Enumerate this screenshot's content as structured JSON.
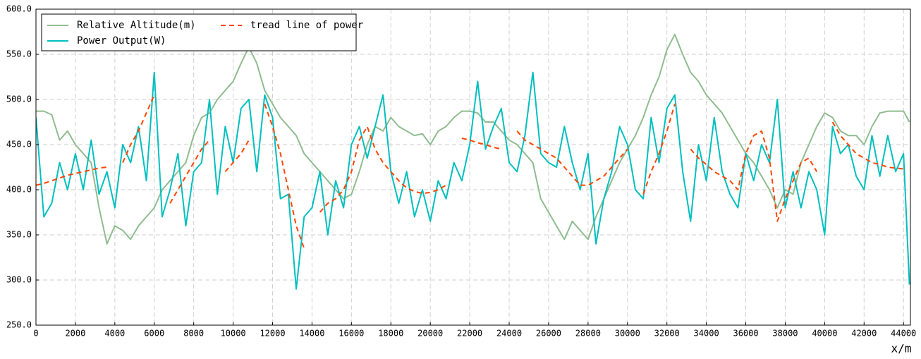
{
  "chart_data": {
    "type": "line",
    "xlabel": "x/m",
    "legend": "upper left",
    "legend_columns": 2,
    "grid": true,
    "xlim": [
      0,
      44350
    ],
    "ylim": [
      250,
      600
    ],
    "xticks": [
      0,
      2000,
      4000,
      6000,
      8000,
      10000,
      12000,
      14000,
      16000,
      18000,
      20000,
      22000,
      24000,
      26000,
      28000,
      30000,
      32000,
      34000,
      36000,
      38000,
      40000,
      42000,
      44000
    ],
    "yticks": [
      {
        "value": 250,
        "label": "250.0"
      },
      {
        "value": 300,
        "label": "300.0"
      },
      {
        "value": 350,
        "label": "350.0"
      },
      {
        "value": 400,
        "label": "400.0"
      },
      {
        "value": 450,
        "label": "450.0"
      },
      {
        "value": 500,
        "label": "500.0"
      },
      {
        "value": 550,
        "label": "550.0"
      },
      {
        "value": 600,
        "label": "600.0"
      }
    ],
    "x": [
      0,
      400,
      800,
      1200,
      1600,
      2000,
      2400,
      2800,
      3200,
      3600,
      4000,
      4400,
      4800,
      5200,
      5600,
      6000,
      6400,
      6800,
      7200,
      7600,
      8000,
      8400,
      8800,
      9200,
      9600,
      10000,
      10400,
      10800,
      11200,
      11600,
      12000,
      12400,
      12800,
      13200,
      13600,
      14000,
      14400,
      14800,
      15200,
      15600,
      16000,
      16400,
      16800,
      17200,
      17600,
      18000,
      18400,
      18800,
      19200,
      19600,
      20000,
      20400,
      20800,
      21200,
      21600,
      22000,
      22400,
      22800,
      23200,
      23600,
      24000,
      24400,
      24800,
      25200,
      25600,
      26000,
      26400,
      26800,
      27200,
      27600,
      28000,
      28400,
      28800,
      29200,
      29600,
      30000,
      30400,
      30800,
      31200,
      31600,
      32000,
      32400,
      32800,
      33200,
      33600,
      34000,
      34400,
      34800,
      35200,
      35600,
      36000,
      36400,
      36800,
      37200,
      37600,
      38000,
      38400,
      38800,
      39200,
      39600,
      40000,
      40400,
      40800,
      41200,
      41600,
      42000,
      42400,
      42800,
      43200,
      43600,
      44000,
      44300
    ],
    "series": [
      {
        "name": "Relative Altitude(m)",
        "color": "#8fbc8f",
        "linestyle": "-",
        "values": [
          487,
          487,
          483,
          455,
          465,
          450,
          440,
          430,
          380,
          340,
          360,
          355,
          345,
          360,
          370,
          380,
          400,
          410,
          420,
          430,
          460,
          480,
          485,
          500,
          510,
          520,
          540,
          558,
          540,
          510,
          495,
          480,
          470,
          460,
          440,
          430,
          420,
          410,
          400,
          390,
          395,
          420,
          450,
          470,
          465,
          480,
          470,
          465,
          460,
          462,
          450,
          465,
          470,
          480,
          487,
          487,
          485,
          475,
          475,
          465,
          455,
          450,
          440,
          430,
          390,
          375,
          360,
          345,
          365,
          355,
          345,
          370,
          390,
          410,
          430,
          445,
          460,
          480,
          505,
          525,
          555,
          572,
          550,
          530,
          520,
          505,
          495,
          485,
          470,
          455,
          440,
          430,
          415,
          400,
          380,
          400,
          395,
          430,
          450,
          470,
          485,
          480,
          465,
          460,
          460,
          450,
          470,
          485,
          487,
          487,
          487,
          475
        ]
      },
      {
        "name": "Power Output(W)",
        "color": "#00bfbf",
        "linestyle": "-",
        "values": [
          480,
          370,
          385,
          430,
          400,
          440,
          400,
          455,
          395,
          420,
          380,
          450,
          430,
          470,
          410,
          530,
          370,
          400,
          440,
          360,
          420,
          430,
          500,
          395,
          470,
          430,
          490,
          500,
          420,
          505,
          480,
          390,
          395,
          290,
          370,
          380,
          420,
          350,
          410,
          380,
          450,
          470,
          435,
          470,
          505,
          420,
          385,
          420,
          370,
          400,
          365,
          410,
          390,
          430,
          410,
          450,
          520,
          445,
          470,
          490,
          430,
          420,
          460,
          530,
          440,
          430,
          425,
          470,
          430,
          400,
          440,
          340,
          390,
          420,
          470,
          450,
          400,
          390,
          480,
          430,
          490,
          505,
          420,
          365,
          450,
          410,
          480,
          420,
          395,
          380,
          440,
          410,
          450,
          430,
          500,
          380,
          420,
          380,
          420,
          400,
          350,
          470,
          440,
          450,
          415,
          400,
          460,
          415,
          460,
          420,
          440,
          295
        ]
      },
      {
        "name": "tread line of power",
        "color": "#ff4500",
        "linestyle": "--",
        "values": [
          405,
          407,
          410,
          413,
          416,
          418,
          420,
          422,
          424,
          425,
          null,
          430,
          450,
          465,
          485,
          505,
          null,
          385,
          400,
          415,
          430,
          445,
          455,
          null,
          420,
          430,
          440,
          455,
          null,
          495,
          470,
          440,
          400,
          360,
          335,
          null,
          375,
          385,
          390,
          400,
          420,
          455,
          470,
          445,
          430,
          420,
          410,
          402,
          398,
          396,
          397,
          400,
          405,
          null,
          457,
          455,
          452,
          450,
          447,
          445,
          null,
          465,
          455,
          450,
          445,
          440,
          435,
          425,
          415,
          405,
          405,
          410,
          415,
          425,
          435,
          445,
          null,
          395,
          420,
          440,
          465,
          495,
          null,
          445,
          435,
          428,
          420,
          415,
          410,
          400,
          440,
          460,
          465,
          435,
          365,
          390,
          410,
          430,
          435,
          420,
          null,
          475,
          460,
          450,
          440,
          435,
          430,
          428,
          425,
          424,
          423,
          null
        ]
      }
    ]
  }
}
